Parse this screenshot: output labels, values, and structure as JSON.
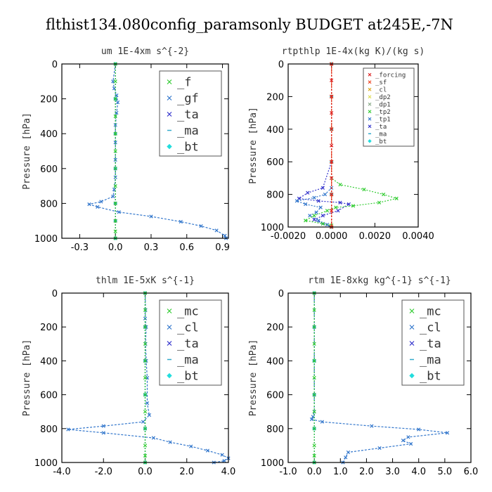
{
  "figure": {
    "title": "flthist134.080config_paramsonly  BUDGET at245E,-7N"
  },
  "chart_data": [
    {
      "type": "line",
      "title": "um   1E-4xm s^{-2}",
      "ylabel": "Pressure [hPa]",
      "xlim": [
        -0.45,
        0.95
      ],
      "ylim": [
        1000,
        0
      ],
      "xticks": [
        "-0.3",
        "0.0",
        "0.3",
        "0.6",
        "0.9"
      ],
      "xtick_values": [
        -0.3,
        0.0,
        0.3,
        0.6,
        0.9
      ],
      "yticks": [
        "0",
        "200",
        "400",
        "600",
        "800",
        "1000"
      ],
      "ytick_values": [
        0,
        200,
        400,
        600,
        800,
        1000
      ],
      "legend_position": "top-right",
      "legend_size": "large",
      "series": [
        {
          "name": "_f",
          "color": "#33cc33",
          "marker": "x",
          "x": [
            0,
            0,
            0,
            0,
            0,
            0,
            0,
            0,
            0,
            0,
            0,
            0
          ],
          "y": [
            0,
            100,
            200,
            300,
            400,
            500,
            600,
            700,
            800,
            900,
            960,
            1000
          ]
        },
        {
          "name": "_gf",
          "color": "#3377cc",
          "marker": "x",
          "x": [
            0,
            -0.02,
            -0.01,
            0.01,
            0.02,
            0.01,
            0,
            0,
            0,
            0,
            -0.01,
            -0.02,
            -0.12,
            -0.22,
            -0.15,
            0.03,
            0.3,
            0.55,
            0.72,
            0.85,
            0.92,
            0.93
          ],
          "y": [
            0,
            100,
            140,
            180,
            220,
            280,
            350,
            450,
            550,
            650,
            720,
            760,
            790,
            805,
            820,
            850,
            875,
            905,
            930,
            955,
            985,
            1000
          ]
        },
        {
          "name": "_ta",
          "color": "#3333cc",
          "marker": "x",
          "x": [
            0,
            0,
            0,
            0,
            0,
            0,
            0
          ],
          "y": [
            0,
            200,
            400,
            600,
            800,
            900,
            1000
          ]
        },
        {
          "name": "_ma",
          "color": "#33aacc",
          "marker": "dash",
          "x": [
            0,
            0,
            0,
            0,
            0,
            0,
            0
          ],
          "y": [
            0,
            200,
            400,
            600,
            800,
            900,
            1000
          ]
        },
        {
          "name": "_bt",
          "color": "#22dddd",
          "marker": "diamond",
          "x": [
            0,
            0,
            0,
            0,
            0,
            0,
            0
          ],
          "y": [
            0,
            200,
            400,
            600,
            800,
            900,
            1000
          ]
        }
      ]
    },
    {
      "type": "line",
      "title": "rtpthlp   1E-4x(kg K)/(kg s)",
      "ylabel": "Pressure [hPa]",
      "xlim": [
        -0.002,
        0.004
      ],
      "ylim": [
        1000,
        0
      ],
      "xticks": [
        "-0.0020",
        "0.0000",
        "0.0020",
        "0.0040"
      ],
      "xtick_values": [
        -0.002,
        0.0,
        0.002,
        0.004
      ],
      "yticks": [
        "0",
        "200",
        "400",
        "600",
        "800",
        "1000"
      ],
      "ytick_values": [
        0,
        200,
        400,
        600,
        800,
        1000
      ],
      "legend_position": "top-right",
      "legend_size": "small",
      "series": [
        {
          "name": "_forcing",
          "color": "#dd2222",
          "marker": "x",
          "x": [
            0,
            0,
            0,
            0,
            0,
            0,
            0,
            0,
            0,
            0,
            0
          ],
          "y": [
            0,
            100,
            200,
            300,
            400,
            500,
            600,
            700,
            800,
            900,
            1000
          ]
        },
        {
          "name": "_sf",
          "color": "#ee4422",
          "marker": "x",
          "x": [
            0,
            0,
            0,
            0,
            0,
            0
          ],
          "y": [
            0,
            200,
            400,
            600,
            800,
            1000
          ]
        },
        {
          "name": "_cl",
          "color": "#ddaa22",
          "marker": "x",
          "x": [
            0,
            0,
            0,
            0,
            0,
            0
          ],
          "y": [
            0,
            200,
            400,
            600,
            800,
            1000
          ]
        },
        {
          "name": "_dp2",
          "color": "#dddd55",
          "marker": "x",
          "x": [
            0,
            0,
            0,
            0,
            0,
            0
          ],
          "y": [
            0,
            200,
            400,
            600,
            800,
            1000
          ]
        },
        {
          "name": "_dp1",
          "color": "#88aa88",
          "marker": "x",
          "x": [
            0,
            0,
            0,
            0,
            0,
            0
          ],
          "y": [
            0,
            200,
            400,
            600,
            800,
            1000
          ]
        },
        {
          "name": "_tp2",
          "color": "#33cc33",
          "marker": "x",
          "x": [
            0,
            0,
            0,
            0.0004,
            0.0015,
            0.0024,
            0.003,
            0.0022,
            0.001,
            0.0002,
            -0.0002,
            -0.0008,
            -0.0012,
            -0.0004,
            0,
            0
          ],
          "y": [
            0,
            400,
            700,
            740,
            770,
            800,
            825,
            850,
            870,
            880,
            900,
            930,
            960,
            980,
            990,
            1000
          ]
        },
        {
          "name": "_tp1",
          "color": "#3377cc",
          "marker": "x",
          "x": [
            0,
            0,
            0,
            -0.0003,
            -0.0008,
            -0.0016,
            -0.0012,
            -0.0005,
            -0.0007,
            -0.001,
            -0.0006,
            -0.0002,
            0
          ],
          "y": [
            0,
            400,
            760,
            800,
            820,
            840,
            860,
            880,
            910,
            930,
            960,
            985,
            1000
          ]
        },
        {
          "name": "_ta",
          "color": "#3333cc",
          "marker": "x",
          "x": [
            0,
            0,
            -0.0004,
            -0.0011,
            -0.0015,
            -0.0006,
            0.0004,
            0.0008,
            0.0003,
            -0.0004,
            -0.0008,
            -0.0004,
            0
          ],
          "y": [
            0,
            600,
            760,
            790,
            825,
            840,
            850,
            860,
            900,
            930,
            955,
            980,
            1000
          ]
        },
        {
          "name": "_ma",
          "color": "#33aacc",
          "marker": "dash",
          "x": [
            0,
            0,
            0,
            0,
            0,
            0
          ],
          "y": [
            0,
            200,
            400,
            600,
            800,
            1000
          ]
        },
        {
          "name": "_bt",
          "color": "#22dddd",
          "marker": "diamond",
          "x": [
            0,
            0,
            0,
            0,
            0,
            0
          ],
          "y": [
            0,
            200,
            400,
            600,
            800,
            1000
          ]
        }
      ]
    },
    {
      "type": "line",
      "title": "thlm   1E-5xK s^{-1}",
      "ylabel": "Pressure [hPa]",
      "xlim": [
        -4.0,
        4.0
      ],
      "ylim": [
        1000,
        0
      ],
      "xticks": [
        "-4.0",
        "-2.0",
        "0.0",
        "2.0",
        "4.0"
      ],
      "xtick_values": [
        -4.0,
        -2.0,
        0.0,
        2.0,
        4.0
      ],
      "yticks": [
        "0",
        "200",
        "400",
        "600",
        "800",
        "1000"
      ],
      "ytick_values": [
        0,
        200,
        400,
        600,
        800,
        1000
      ],
      "legend_position": "top-right",
      "legend_size": "large",
      "series": [
        {
          "name": "_mc",
          "color": "#33cc33",
          "marker": "x",
          "x": [
            0,
            0,
            0,
            0,
            0,
            0,
            0,
            0,
            0,
            0,
            0,
            0
          ],
          "y": [
            0,
            100,
            200,
            300,
            400,
            500,
            600,
            700,
            800,
            900,
            960,
            1000
          ]
        },
        {
          "name": "_cl",
          "color": "#3377cc",
          "marker": "x",
          "x": [
            0,
            0.02,
            0,
            0.05,
            0.02,
            0.05,
            0.1,
            0.1,
            0.2,
            -0.1,
            -2.0,
            -3.7,
            -2.0,
            0.4,
            1.2,
            2.2,
            3.0,
            3.7,
            4.0,
            3.8,
            3.3
          ],
          "y": [
            0,
            100,
            150,
            200,
            300,
            400,
            500,
            650,
            720,
            760,
            785,
            805,
            825,
            855,
            880,
            905,
            930,
            955,
            975,
            990,
            1000
          ]
        },
        {
          "name": "_ta",
          "color": "#3333cc",
          "marker": "x",
          "x": [
            0,
            0,
            0,
            0,
            0,
            0
          ],
          "y": [
            0,
            200,
            400,
            600,
            800,
            1000
          ]
        },
        {
          "name": "_ma",
          "color": "#33aacc",
          "marker": "dash",
          "x": [
            0,
            0,
            0,
            0,
            0,
            0
          ],
          "y": [
            0,
            200,
            400,
            600,
            800,
            1000
          ]
        },
        {
          "name": "_bt",
          "color": "#22dddd",
          "marker": "diamond",
          "x": [
            0,
            0,
            0,
            0,
            0,
            0
          ],
          "y": [
            0,
            200,
            400,
            600,
            800,
            1000
          ]
        }
      ]
    },
    {
      "type": "line",
      "title": "rtm   1E-8xkg kg^{-1} s^{-1}",
      "ylabel": "Pressure [hPa]",
      "xlim": [
        -1.0,
        6.0
      ],
      "ylim": [
        1000,
        0
      ],
      "xticks": [
        "-1.0",
        "0.0",
        "1.0",
        "2.0",
        "3.0",
        "4.0",
        "5.0",
        "6.0"
      ],
      "xtick_values": [
        -1.0,
        0.0,
        1.0,
        2.0,
        3.0,
        4.0,
        5.0,
        6.0
      ],
      "yticks": [
        "0",
        "200",
        "400",
        "600",
        "800",
        "1000"
      ],
      "ytick_values": [
        0,
        200,
        400,
        600,
        800,
        1000
      ],
      "legend_position": "top-right",
      "legend_size": "large",
      "series": [
        {
          "name": "_mc",
          "color": "#33cc33",
          "marker": "x",
          "x": [
            0,
            0,
            0,
            0,
            0,
            0,
            0,
            0,
            0,
            0,
            0,
            0
          ],
          "y": [
            0,
            100,
            200,
            300,
            400,
            500,
            600,
            700,
            800,
            900,
            960,
            1000
          ]
        },
        {
          "name": "_cl",
          "color": "#3377cc",
          "marker": "x",
          "x": [
            0,
            0,
            0,
            0,
            0,
            -0.05,
            -0.1,
            0.3,
            2.2,
            4.0,
            5.1,
            3.6,
            3.4,
            3.7,
            2.5,
            1.3,
            1.2,
            1.1
          ],
          "y": [
            0,
            200,
            400,
            600,
            700,
            730,
            745,
            760,
            785,
            805,
            825,
            850,
            870,
            890,
            915,
            940,
            970,
            1000
          ]
        },
        {
          "name": "_ta",
          "color": "#3333cc",
          "marker": "x",
          "x": [
            0,
            0,
            0,
            0,
            0,
            0
          ],
          "y": [
            0,
            200,
            400,
            600,
            800,
            1000
          ]
        },
        {
          "name": "_ma",
          "color": "#33aacc",
          "marker": "dash",
          "x": [
            0,
            0,
            0,
            0,
            0,
            0
          ],
          "y": [
            0,
            200,
            400,
            600,
            800,
            1000
          ]
        },
        {
          "name": "_bt",
          "color": "#22dddd",
          "marker": "diamond",
          "x": [
            0,
            0,
            0,
            0,
            0,
            0
          ],
          "y": [
            0,
            200,
            400,
            600,
            800,
            1000
          ]
        }
      ]
    }
  ]
}
